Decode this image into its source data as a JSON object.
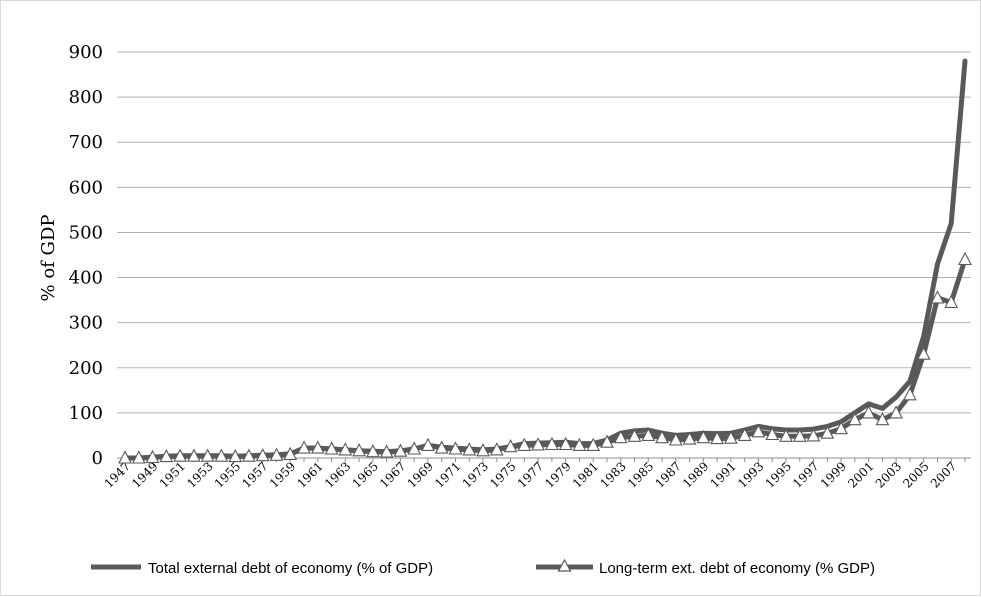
{
  "chart_data": {
    "type": "line",
    "ylabel": "% of GDP",
    "xlabel": "",
    "title": "",
    "ylim": [
      0,
      900
    ],
    "yticks": [
      0,
      100,
      200,
      300,
      400,
      500,
      600,
      700,
      800,
      900
    ],
    "x": [
      1947,
      1948,
      1949,
      1950,
      1951,
      1952,
      1953,
      1954,
      1955,
      1956,
      1957,
      1958,
      1959,
      1960,
      1961,
      1962,
      1963,
      1964,
      1965,
      1966,
      1967,
      1968,
      1969,
      1970,
      1971,
      1972,
      1973,
      1974,
      1975,
      1976,
      1977,
      1978,
      1979,
      1980,
      1981,
      1982,
      1983,
      1984,
      1985,
      1986,
      1987,
      1988,
      1989,
      1990,
      1991,
      1992,
      1993,
      1994,
      1995,
      1996,
      1997,
      1998,
      1999,
      2000,
      2001,
      2002,
      2003,
      2004,
      2005,
      2006,
      2007,
      2008
    ],
    "x_tick_labels": [
      "1947",
      "1949",
      "1951",
      "1953",
      "1955",
      "1957",
      "1959",
      "1961",
      "1963",
      "1965",
      "1967",
      "1969",
      "1971",
      "1973",
      "1975",
      "1977",
      "1979",
      "1981",
      "1983",
      "1985",
      "1987",
      "1989",
      "1991",
      "1993",
      "1995",
      "1997",
      "1999",
      "2001",
      "2003",
      "2005",
      "2007"
    ],
    "grid": "horizontal",
    "legend_position": "bottom",
    "series": [
      {
        "name": "Total external debt of economy (% of GDP)",
        "color": "#595959",
        "marker": "none",
        "values": [
          0,
          0,
          2,
          4,
          5,
          5,
          5,
          5,
          4,
          5,
          6,
          7,
          9,
          22,
          22,
          20,
          18,
          16,
          15,
          14,
          16,
          20,
          28,
          24,
          22,
          20,
          18,
          20,
          25,
          32,
          33,
          34,
          35,
          32,
          32,
          40,
          55,
          60,
          62,
          55,
          50,
          52,
          55,
          54,
          55,
          62,
          70,
          65,
          62,
          62,
          64,
          70,
          80,
          100,
          120,
          110,
          135,
          170,
          270,
          430,
          520,
          880
        ]
      },
      {
        "name": "Long-term ext. debt of economy (% GDP)",
        "color": "#595959",
        "marker": "triangle",
        "values": [
          0,
          0,
          1,
          3,
          4,
          4,
          4,
          4,
          3,
          4,
          5,
          6,
          8,
          22,
          22,
          20,
          18,
          16,
          14,
          13,
          15,
          20,
          28,
          22,
          20,
          18,
          16,
          18,
          25,
          28,
          29,
          30,
          30,
          28,
          28,
          35,
          45,
          48,
          50,
          45,
          40,
          42,
          45,
          43,
          44,
          50,
          58,
          52,
          48,
          48,
          49,
          55,
          65,
          85,
          100,
          85,
          100,
          140,
          230,
          355,
          345,
          440
        ]
      }
    ]
  }
}
